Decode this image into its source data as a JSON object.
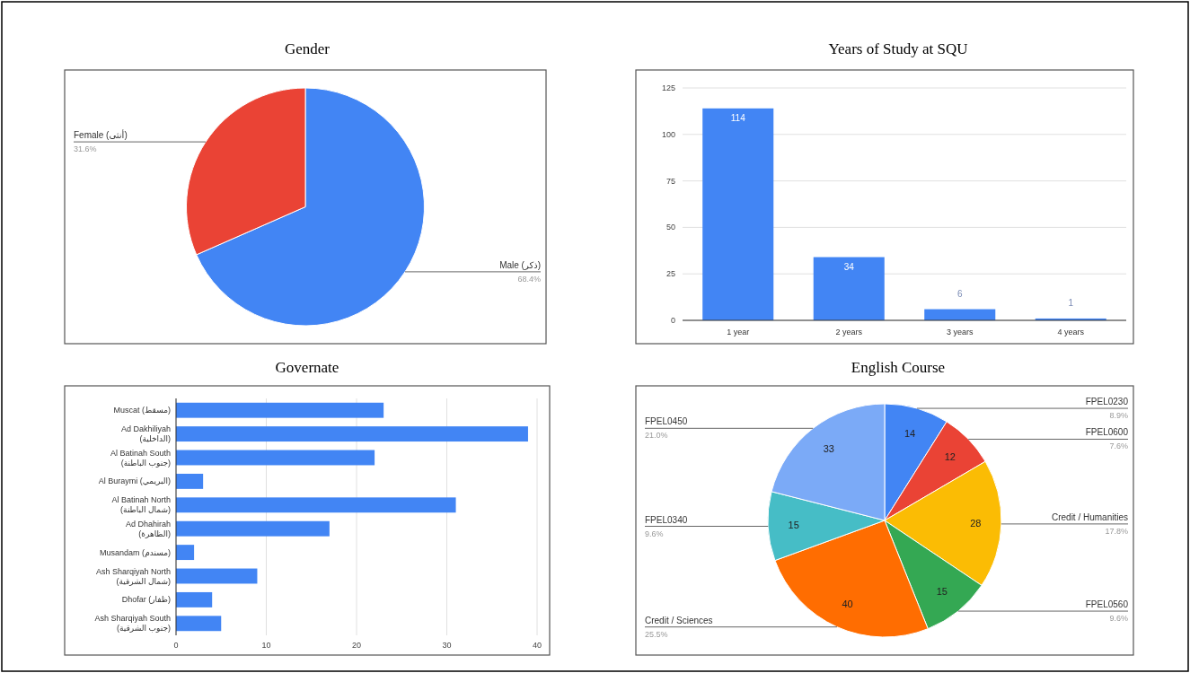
{
  "chart_data": [
    {
      "type": "pie",
      "title": "Gender",
      "categories": [
        "Male (ذكر)",
        "Female (أنثى)"
      ],
      "values": [
        68.4,
        31.6
      ],
      "colors": [
        "#4285f4",
        "#ea4335"
      ],
      "value_labels": [
        "68.4%",
        "31.6%"
      ]
    },
    {
      "type": "bar",
      "title": "Years of Study at SQU",
      "categories": [
        "1 year",
        "2 years",
        "3 years",
        "4 years"
      ],
      "values": [
        114,
        34,
        6,
        1
      ],
      "color": "#4285f4",
      "ylim": [
        0,
        125
      ],
      "yticks": [
        0,
        25,
        50,
        75,
        100,
        125
      ],
      "grid": "y",
      "data_labels": true
    },
    {
      "type": "bar",
      "orientation": "horizontal",
      "title": "Governate",
      "categories": [
        "Muscat (مسقط)",
        "Ad Dakhiliyah (الداخلية)",
        "Al Batinah South (جنوب الباطنة)",
        "Al Buraymi (البريمي)",
        "Al Batinah North (شمال الباطنة)",
        "Ad Dhahirah (الظاهرة)",
        "Musandam (مسندم)",
        "Ash Sharqiyah North (شمال الشرقية)",
        "Dhofar (ظفار)",
        "Ash Sharqiyah South (جنوب الشرقية)"
      ],
      "values": [
        23,
        39,
        22,
        3,
        31,
        17,
        2,
        9,
        4,
        5
      ],
      "color": "#4285f4",
      "xlim": [
        0,
        40
      ],
      "xticks": [
        0,
        10,
        20,
        30,
        40
      ],
      "grid": "x"
    },
    {
      "type": "pie",
      "title": "English Course",
      "categories": [
        "FPEL0230",
        "FPEL0600",
        "Credit / Humanities",
        "FPEL0560",
        "Credit / Sciences",
        "FPEL0340",
        "FPEL0450"
      ],
      "values": [
        14,
        12,
        28,
        15,
        40,
        15,
        33
      ],
      "colors": [
        "#4285f4",
        "#ea4335",
        "#fbbc04",
        "#34a853",
        "#ff6d01",
        "#46bdc6",
        "#7baaf7"
      ],
      "data_labels": true,
      "annotations": [
        {
          "text": "8.9%",
          "x": "FPEL0230"
        },
        {
          "text": "7.6%",
          "x": "FPEL0600"
        },
        {
          "text": "17.8%",
          "x": "Credit / Humanities"
        },
        {
          "text": "9.6%",
          "x": "FPEL0560"
        },
        {
          "text": "25.5%",
          "x": "Credit / Sciences"
        },
        {
          "text": "9.6%",
          "x": "FPEL0340"
        },
        {
          "text": "21.0%",
          "x": "FPEL0450"
        }
      ]
    }
  ]
}
